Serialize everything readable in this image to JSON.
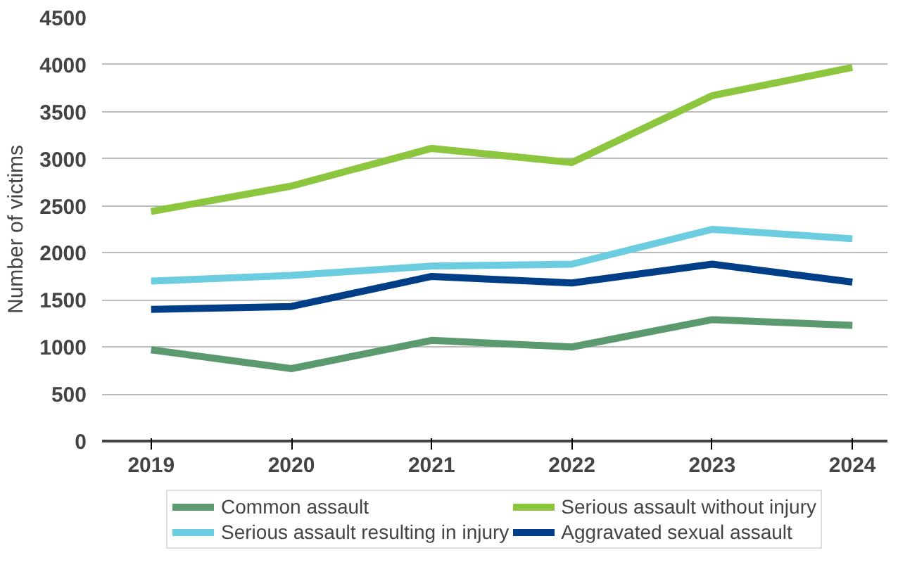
{
  "chart_data": {
    "type": "line",
    "ylabel": "Number of victims",
    "categories": [
      "2019",
      "2020",
      "2021",
      "2022",
      "2023",
      "2024"
    ],
    "series": [
      {
        "name": "Common assault",
        "color": "#5a9a6e",
        "values": [
          970,
          770,
          1070,
          1000,
          1290,
          1230
        ]
      },
      {
        "name": "Serious assault without injury",
        "color": "#8cc63f",
        "values": [
          2440,
          2710,
          3110,
          2960,
          3670,
          3970
        ]
      },
      {
        "name": "Serious assault resulting in injury",
        "color": "#6ccde0",
        "values": [
          1700,
          1760,
          1860,
          1880,
          2250,
          2150
        ]
      },
      {
        "name": "Aggravated sexual assault",
        "color": "#003f87",
        "values": [
          1400,
          1430,
          1750,
          1680,
          1880,
          1690
        ]
      }
    ],
    "ylim": [
      0,
      4500
    ],
    "yticks": [
      0,
      500,
      1000,
      1500,
      2000,
      2500,
      3000,
      3500,
      4000,
      4500
    ],
    "grid": "y",
    "legend": "bottom",
    "marker": "none",
    "line_style": "solid"
  }
}
